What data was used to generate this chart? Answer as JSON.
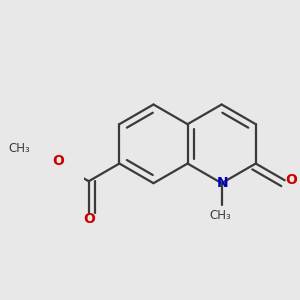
{
  "bg_color": "#e8e8e8",
  "bond_color": "#3a3a3a",
  "bond_width": 1.6,
  "dbo": 0.055,
  "atom_colors": {
    "O": "#cc0000",
    "N": "#0000bb",
    "C": "#3a3a3a"
  },
  "font_size": 10,
  "fig_size": [
    3.0,
    3.0
  ],
  "dpi": 100,
  "s": 0.32
}
